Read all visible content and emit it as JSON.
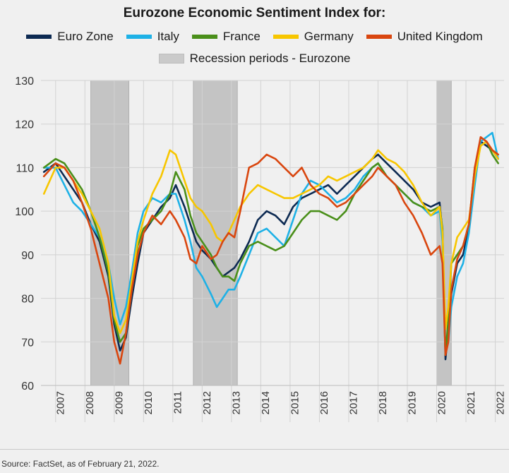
{
  "title": "Eurozone Economic Sentiment Index for:",
  "source": "Source: FactSet, as of February 21, 2022.",
  "chart_data": {
    "type": "line",
    "title": "Eurozone Economic Sentiment Index for:",
    "ylim": [
      60,
      130
    ],
    "yticks": [
      60,
      70,
      80,
      90,
      100,
      110,
      120,
      130
    ],
    "xlim": [
      2006.5,
      2022.3
    ],
    "xticks": [
      "2007",
      "2008",
      "2009",
      "2010",
      "2011",
      "2012",
      "2013",
      "2014",
      "2015",
      "2016",
      "2017",
      "2018",
      "2019",
      "2020",
      "2021",
      "2022"
    ],
    "grid": true,
    "legend_placement": "top",
    "recession_label": "Recession periods - Eurozone",
    "recessions": [
      [
        2008.2,
        2009.5
      ],
      [
        2011.7,
        2013.2
      ],
      [
        2020.0,
        2020.5
      ]
    ],
    "series": [
      {
        "name": "Euro Zone",
        "color": "#0d2a52",
        "x": [
          2006.6,
          2007.0,
          2007.3,
          2007.6,
          2007.9,
          2008.2,
          2008.5,
          2008.8,
          2009.0,
          2009.2,
          2009.4,
          2009.6,
          2009.8,
          2010.0,
          2010.3,
          2010.6,
          2010.9,
          2011.1,
          2011.4,
          2011.6,
          2011.8,
          2012.0,
          2012.3,
          2012.5,
          2012.7,
          2012.9,
          2013.1,
          2013.3,
          2013.6,
          2013.9,
          2014.2,
          2014.5,
          2014.8,
          2015.1,
          2015.4,
          2015.7,
          2016.0,
          2016.3,
          2016.6,
          2016.9,
          2017.2,
          2017.5,
          2017.8,
          2018.0,
          2018.3,
          2018.6,
          2018.9,
          2019.2,
          2019.5,
          2019.8,
          2020.1,
          2020.2,
          2020.3,
          2020.4,
          2020.5,
          2020.7,
          2020.9,
          2021.1,
          2021.3,
          2021.5,
          2021.7,
          2021.9,
          2022.1
        ],
        "y": [
          109,
          111,
          108,
          105,
          102,
          97,
          93,
          85,
          74,
          68,
          71,
          80,
          88,
          95,
          98,
          101,
          103,
          106,
          101,
          97,
          93,
          91,
          89,
          87,
          85,
          86,
          87,
          89,
          93,
          98,
          100,
          99,
          97,
          101,
          103,
          104,
          105,
          106,
          104,
          106,
          108,
          110,
          112,
          113,
          111,
          109,
          107,
          105,
          102,
          101,
          102,
          95,
          66,
          73,
          81,
          88,
          90,
          96,
          108,
          116,
          115,
          114,
          112
        ]
      },
      {
        "name": "Italy",
        "color": "#1eb1e6",
        "x": [
          2006.6,
          2007.0,
          2007.3,
          2007.6,
          2007.9,
          2008.2,
          2008.5,
          2008.8,
          2009.0,
          2009.2,
          2009.4,
          2009.6,
          2009.8,
          2010.0,
          2010.3,
          2010.6,
          2010.9,
          2011.1,
          2011.4,
          2011.6,
          2011.8,
          2012.0,
          2012.3,
          2012.5,
          2012.7,
          2012.9,
          2013.1,
          2013.3,
          2013.6,
          2013.9,
          2014.2,
          2014.5,
          2014.8,
          2015.1,
          2015.4,
          2015.7,
          2016.0,
          2016.3,
          2016.6,
          2016.9,
          2017.2,
          2017.5,
          2017.8,
          2018.0,
          2018.3,
          2018.6,
          2018.9,
          2019.2,
          2019.5,
          2019.8,
          2020.1,
          2020.2,
          2020.3,
          2020.4,
          2020.5,
          2020.7,
          2020.9,
          2021.1,
          2021.3,
          2021.5,
          2021.7,
          2021.9,
          2022.1
        ],
        "y": [
          110,
          110,
          106,
          102,
          100,
          97,
          94,
          88,
          80,
          74,
          78,
          86,
          95,
          100,
          103,
          102,
          104,
          104,
          98,
          93,
          87,
          85,
          81,
          78,
          80,
          82,
          82,
          85,
          90,
          95,
          96,
          94,
          92,
          98,
          104,
          107,
          106,
          104,
          102,
          103,
          105,
          108,
          110,
          111,
          108,
          106,
          104,
          102,
          101,
          99,
          100,
          93,
          68,
          70,
          78,
          85,
          88,
          95,
          106,
          116,
          117,
          118,
          112
        ]
      },
      {
        "name": "France",
        "color": "#4a8f1a",
        "x": [
          2006.6,
          2007.0,
          2007.3,
          2007.6,
          2007.9,
          2008.2,
          2008.5,
          2008.8,
          2009.0,
          2009.2,
          2009.4,
          2009.6,
          2009.8,
          2010.0,
          2010.3,
          2010.6,
          2010.9,
          2011.1,
          2011.4,
          2011.6,
          2011.8,
          2012.0,
          2012.3,
          2012.5,
          2012.7,
          2012.9,
          2013.1,
          2013.3,
          2013.6,
          2013.9,
          2014.2,
          2014.5,
          2014.8,
          2015.1,
          2015.4,
          2015.7,
          2016.0,
          2016.3,
          2016.6,
          2016.9,
          2017.2,
          2017.5,
          2017.8,
          2018.0,
          2018.3,
          2018.6,
          2018.9,
          2019.2,
          2019.5,
          2019.8,
          2020.1,
          2020.2,
          2020.3,
          2020.4,
          2020.5,
          2020.7,
          2020.9,
          2021.1,
          2021.3,
          2021.5,
          2021.7,
          2021.9,
          2022.1
        ],
        "y": [
          110,
          112,
          111,
          108,
          105,
          100,
          94,
          86,
          75,
          70,
          72,
          82,
          92,
          96,
          98,
          100,
          104,
          109,
          105,
          99,
          95,
          93,
          90,
          87,
          85,
          85,
          84,
          88,
          92,
          93,
          92,
          91,
          92,
          95,
          98,
          100,
          100,
          99,
          98,
          100,
          104,
          107,
          110,
          111,
          108,
          106,
          104,
          102,
          101,
          100,
          101,
          96,
          67,
          75,
          88,
          90,
          92,
          97,
          110,
          115,
          116,
          113,
          111
        ]
      },
      {
        "name": "Germany",
        "color": "#f7c600",
        "x": [
          2006.6,
          2007.0,
          2007.3,
          2007.6,
          2007.9,
          2008.2,
          2008.5,
          2008.8,
          2009.0,
          2009.2,
          2009.4,
          2009.6,
          2009.8,
          2010.0,
          2010.3,
          2010.6,
          2010.9,
          2011.1,
          2011.4,
          2011.6,
          2011.8,
          2012.0,
          2012.3,
          2012.5,
          2012.7,
          2012.9,
          2013.1,
          2013.3,
          2013.6,
          2013.9,
          2014.2,
          2014.5,
          2014.8,
          2015.1,
          2015.4,
          2015.7,
          2016.0,
          2016.3,
          2016.6,
          2016.9,
          2017.2,
          2017.5,
          2017.8,
          2018.0,
          2018.3,
          2018.6,
          2018.9,
          2019.2,
          2019.5,
          2019.8,
          2020.1,
          2020.2,
          2020.3,
          2020.4,
          2020.5,
          2020.7,
          2020.9,
          2021.1,
          2021.3,
          2021.5,
          2021.7,
          2021.9,
          2022.1
        ],
        "y": [
          104,
          110,
          110,
          107,
          104,
          100,
          96,
          88,
          76,
          72,
          75,
          84,
          93,
          98,
          104,
          108,
          114,
          113,
          107,
          103,
          101,
          100,
          97,
          94,
          93,
          95,
          98,
          101,
          104,
          106,
          105,
          104,
          103,
          103,
          104,
          105,
          106,
          108,
          107,
          108,
          109,
          110,
          112,
          114,
          112,
          111,
          109,
          106,
          102,
          99,
          101,
          95,
          73,
          78,
          88,
          94,
          96,
          98,
          108,
          115,
          116,
          114,
          112
        ]
      },
      {
        "name": "United Kingdom",
        "color": "#d9460f",
        "x": [
          2006.6,
          2007.0,
          2007.3,
          2007.6,
          2007.9,
          2008.2,
          2008.5,
          2008.8,
          2009.0,
          2009.2,
          2009.4,
          2009.6,
          2009.8,
          2010.0,
          2010.3,
          2010.6,
          2010.9,
          2011.1,
          2011.4,
          2011.6,
          2011.8,
          2012.0,
          2012.3,
          2012.5,
          2012.7,
          2012.9,
          2013.1,
          2013.3,
          2013.6,
          2013.9,
          2014.2,
          2014.5,
          2014.8,
          2015.1,
          2015.4,
          2015.7,
          2016.0,
          2016.3,
          2016.6,
          2016.9,
          2017.2,
          2017.5,
          2017.8,
          2018.0,
          2018.3,
          2018.6,
          2018.9,
          2019.2,
          2019.5,
          2019.8,
          2020.1,
          2020.2,
          2020.3,
          2020.4,
          2020.5,
          2020.7,
          2020.9,
          2021.1,
          2021.3,
          2021.5,
          2021.7,
          2021.9,
          2022.1
        ],
        "y": [
          108,
          111,
          110,
          107,
          102,
          96,
          88,
          80,
          70,
          65,
          72,
          82,
          90,
          95,
          99,
          97,
          100,
          98,
          94,
          89,
          88,
          92,
          89,
          90,
          93,
          95,
          94,
          100,
          110,
          111,
          113,
          112,
          110,
          108,
          110,
          106,
          104,
          103,
          101,
          102,
          104,
          106,
          108,
          110,
          108,
          106,
          102,
          99,
          95,
          90,
          92,
          88,
          67,
          70,
          82,
          89,
          92,
          97,
          110,
          117,
          116,
          114,
          113
        ]
      }
    ]
  }
}
